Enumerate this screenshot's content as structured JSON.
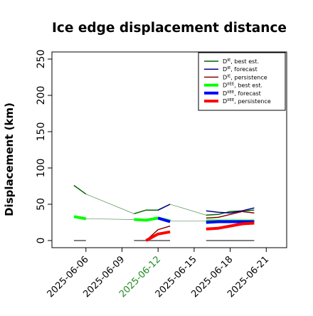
{
  "chart_data": {
    "type": "line",
    "title": "Ice edge displacement distance",
    "xlabel": "",
    "ylabel": "Displacement (km)",
    "xlim": [
      "2025-06-04",
      "2025-06-22"
    ],
    "ylim": [
      0,
      260
    ],
    "yticks": [
      0,
      50,
      100,
      150,
      200,
      250
    ],
    "xticks": [
      {
        "label": "2025-06-06",
        "value": "2025-06-06",
        "color": "#000000"
      },
      {
        "label": "2025-06-09",
        "value": "2025-06-09",
        "color": "#000000"
      },
      {
        "label": "2025-06-12",
        "value": "2025-06-12",
        "color": "#228b22"
      },
      {
        "label": "2025-06-15",
        "value": "2025-06-15",
        "color": "#000000"
      },
      {
        "label": "2025-06-18",
        "value": "2025-06-18",
        "color": "#000000"
      },
      {
        "label": "2025-06-21",
        "value": "2025-06-21",
        "color": "#000000"
      }
    ],
    "grid": false,
    "legend_position": "top-right",
    "connector": {
      "color": "#3a7a3a",
      "segments": [
        {
          "x": [
            "2025-06-06",
            "2025-06-10"
          ],
          "y": [
            64,
            37
          ]
        },
        {
          "x": [
            "2025-06-13",
            "2025-06-16"
          ],
          "y": [
            50,
            35
          ]
        },
        {
          "x": [
            "2025-06-06",
            "2025-06-10"
          ],
          "y": [
            30,
            29
          ]
        },
        {
          "x": [
            "2025-06-13",
            "2025-06-16"
          ],
          "y": [
            27,
            27
          ]
        }
      ]
    },
    "baselines": [
      {
        "x": [
          "2025-06-05",
          "2025-06-06"
        ],
        "y": 0
      },
      {
        "x": [
          "2025-06-10",
          "2025-06-13"
        ],
        "y": 0
      },
      {
        "x": [
          "2025-06-16",
          "2025-06-20"
        ],
        "y": 0
      }
    ],
    "baseline_color": "#808080",
    "series": [
      {
        "name_main": "D",
        "name_sup": "IE",
        "name_rest": ", best est.",
        "color": "#006400",
        "width": 1.5,
        "segments": [
          {
            "x": [
              "2025-06-05",
              "2025-06-06"
            ],
            "y": [
              76,
              64
            ]
          },
          {
            "x": [
              "2025-06-10",
              "2025-06-11",
              "2025-06-12",
              "2025-06-13"
            ],
            "y": [
              37,
              42,
              42,
              50
            ]
          },
          {
            "x": [
              "2025-06-16",
              "2025-06-17",
              "2025-06-18",
              "2025-06-19",
              "2025-06-20"
            ],
            "y": [
              35,
              36,
              40,
              41,
              42
            ]
          }
        ]
      },
      {
        "name_main": "D",
        "name_sup": "IE",
        "name_rest": ", forecast",
        "color": "#00008b",
        "width": 1.5,
        "segments": [
          {
            "x": [
              "2025-06-12",
              "2025-06-13"
            ],
            "y": [
              42,
              50
            ]
          },
          {
            "x": [
              "2025-06-16",
              "2025-06-17",
              "2025-06-18",
              "2025-06-19",
              "2025-06-20"
            ],
            "y": [
              41,
              39,
              38,
              41,
              45
            ]
          }
        ]
      },
      {
        "name_main": "D",
        "name_sup": "IE",
        "name_rest": ", persistence",
        "color": "#8b0000",
        "width": 1.5,
        "segments": [
          {
            "x": [
              "2025-06-11",
              "2025-06-12",
              "2025-06-13"
            ],
            "y": [
              0,
              15,
              20
            ]
          },
          {
            "x": [
              "2025-06-16",
              "2025-06-17",
              "2025-06-18",
              "2025-06-19",
              "2025-06-20"
            ],
            "y": [
              31,
              32,
              36,
              40,
              38
            ]
          }
        ]
      },
      {
        "name_main": "D",
        "name_sup": "IIEE",
        "name_rest": ", best est.",
        "color": "#00ff00",
        "width": 4,
        "segments": [
          {
            "x": [
              "2025-06-05",
              "2025-06-06"
            ],
            "y": [
              33,
              30
            ]
          },
          {
            "x": [
              "2025-06-10",
              "2025-06-11",
              "2025-06-12",
              "2025-06-13"
            ],
            "y": [
              29,
              28,
              31,
              27
            ]
          },
          {
            "x": [
              "2025-06-16",
              "2025-06-17",
              "2025-06-18",
              "2025-06-19",
              "2025-06-20"
            ],
            "y": [
              27,
              27,
              27,
              27,
              27
            ]
          }
        ]
      },
      {
        "name_main": "D",
        "name_sup": "IIEE",
        "name_rest": ", forecast",
        "color": "#0000ff",
        "width": 4,
        "segments": [
          {
            "x": [
              "2025-06-12",
              "2025-06-13"
            ],
            "y": [
              31,
              26
            ]
          },
          {
            "x": [
              "2025-06-16",
              "2025-06-17",
              "2025-06-18",
              "2025-06-19",
              "2025-06-20"
            ],
            "y": [
              25,
              26,
              26,
              26,
              26
            ]
          }
        ]
      },
      {
        "name_main": "D",
        "name_sup": "IIEE",
        "name_rest": ", persistence",
        "color": "#ff0000",
        "width": 4,
        "segments": [
          {
            "x": [
              "2025-06-11",
              "2025-06-12",
              "2025-06-13"
            ],
            "y": [
              0,
              9,
              12
            ]
          },
          {
            "x": [
              "2025-06-16",
              "2025-06-17",
              "2025-06-18",
              "2025-06-19",
              "2025-06-20"
            ],
            "y": [
              16,
              17,
              20,
              23,
              24
            ]
          }
        ]
      }
    ]
  }
}
